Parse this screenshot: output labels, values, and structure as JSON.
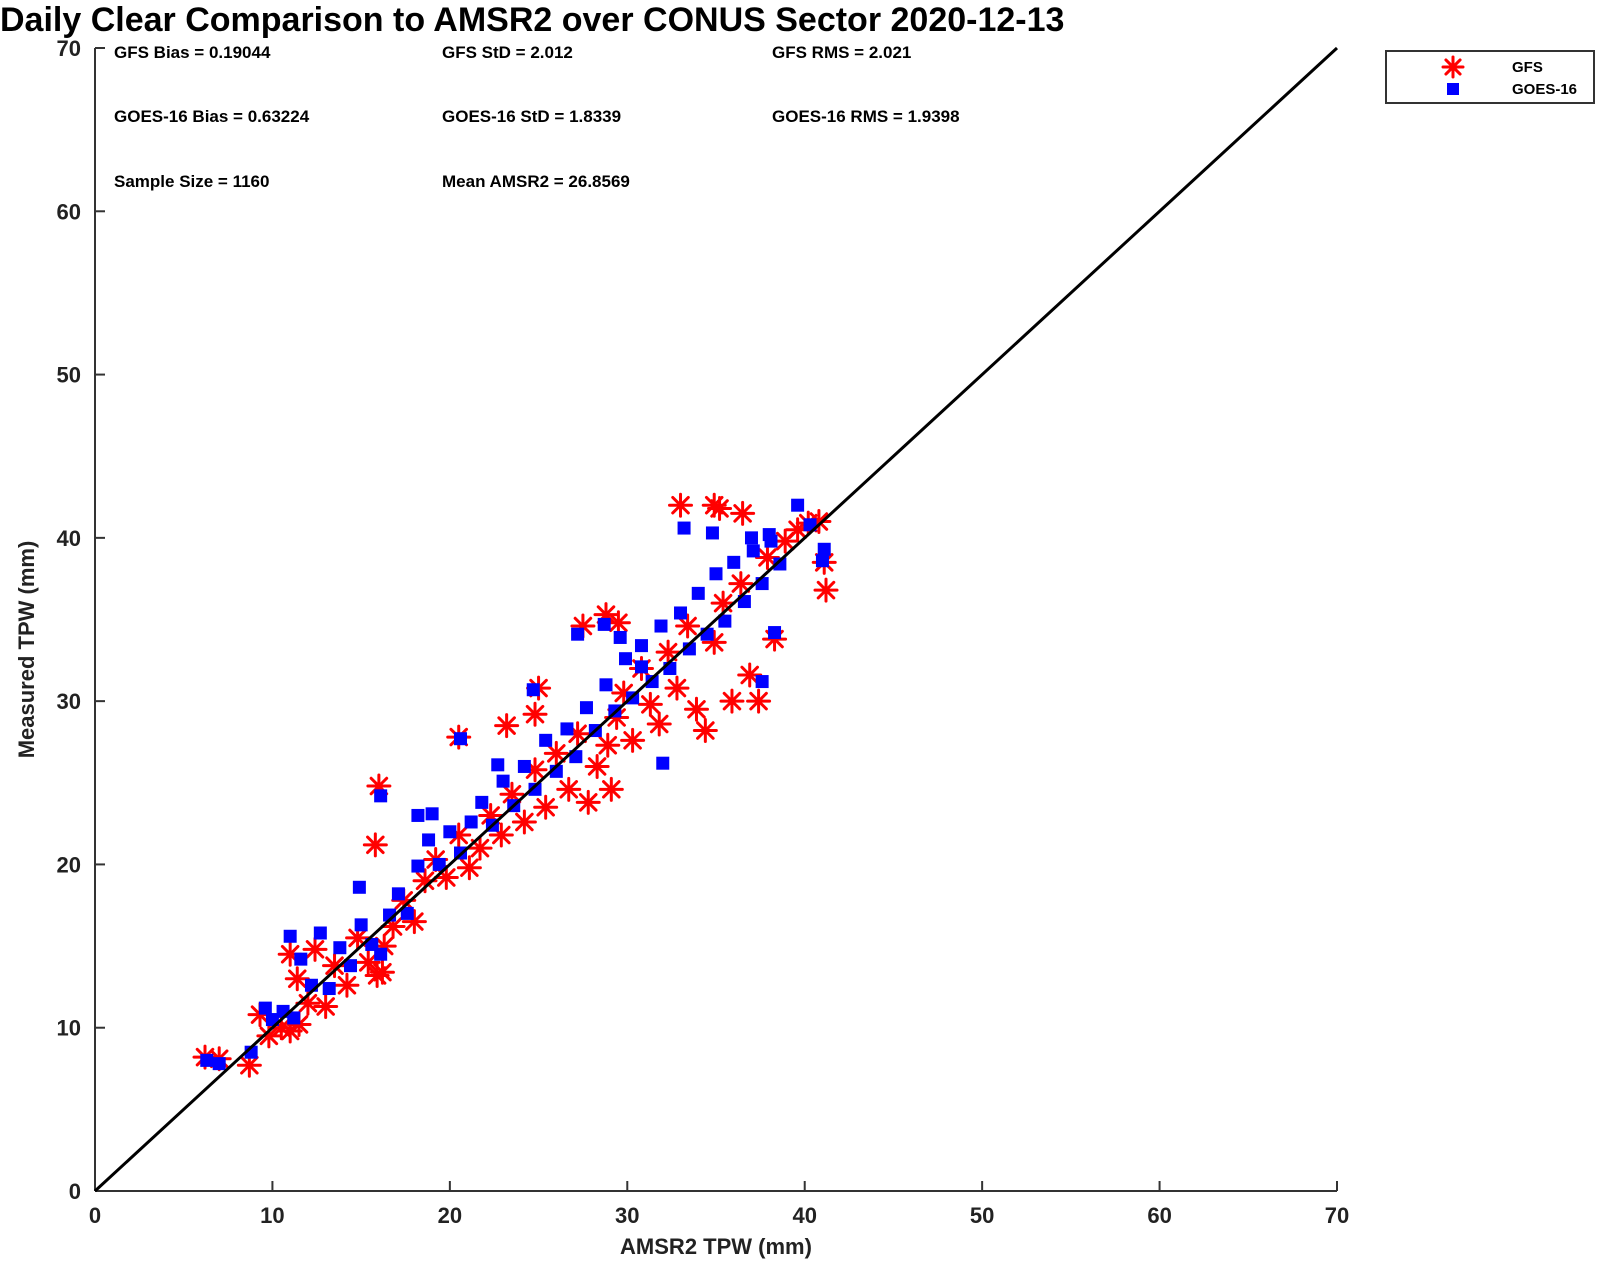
{
  "chart_data": {
    "type": "scatter",
    "title": "Daily Clear Comparison to AMSR2 over CONUS Sector 2020-12-13",
    "xlabel": "AMSR2 TPW (mm)",
    "ylabel": "Measured TPW (mm)",
    "xlim": [
      0,
      70
    ],
    "ylim": [
      0,
      70
    ],
    "xticks": [
      "0",
      "10",
      "20",
      "30",
      "40",
      "50",
      "60",
      "70"
    ],
    "yticks": [
      "0",
      "10",
      "20",
      "30",
      "40",
      "50",
      "60",
      "70"
    ],
    "grid": false,
    "legend_position": "top-right, outside plot",
    "reference_line": {
      "from": [
        0,
        0
      ],
      "to": [
        70,
        70
      ],
      "color": "#000000"
    },
    "stats": [
      "GFS Bias = 0.19044",
      "GFS StD = 2.012",
      "GFS RMS = 2.021",
      "GOES-16 Bias = 0.63224",
      "GOES-16 StD = 1.8339",
      "GOES-16 RMS = 1.9398",
      "Sample Size = 1160",
      "Mean AMSR2 = 26.8569"
    ],
    "series": [
      {
        "name": "GFS",
        "marker": "asterisk",
        "color": "#ff0000",
        "points": [
          [
            6.2,
            8.2
          ],
          [
            7.0,
            8.1
          ],
          [
            8.7,
            7.7
          ],
          [
            9.3,
            10.8
          ],
          [
            9.8,
            9.5
          ],
          [
            10.5,
            10.0
          ],
          [
            11.0,
            9.8
          ],
          [
            11.5,
            10.2
          ],
          [
            11.0,
            14.5
          ],
          [
            11.4,
            13.0
          ],
          [
            12.0,
            11.5
          ],
          [
            12.4,
            14.8
          ],
          [
            13.0,
            11.3
          ],
          [
            13.5,
            13.8
          ],
          [
            14.2,
            12.6
          ],
          [
            14.8,
            15.5
          ],
          [
            15.4,
            14.0
          ],
          [
            15.9,
            13.2
          ],
          [
            16.3,
            15.0
          ],
          [
            16.8,
            16.2
          ],
          [
            17.4,
            17.8
          ],
          [
            18.0,
            16.5
          ],
          [
            18.6,
            19.0
          ],
          [
            19.2,
            20.3
          ],
          [
            19.8,
            19.2
          ],
          [
            20.5,
            21.8
          ],
          [
            21.1,
            19.8
          ],
          [
            21.7,
            21.0
          ],
          [
            22.3,
            23.0
          ],
          [
            22.9,
            21.8
          ],
          [
            23.5,
            24.3
          ],
          [
            24.2,
            22.6
          ],
          [
            24.8,
            25.8
          ],
          [
            25.4,
            23.5
          ],
          [
            26.0,
            26.8
          ],
          [
            26.7,
            24.6
          ],
          [
            27.2,
            28.0
          ],
          [
            27.8,
            23.8
          ],
          [
            28.3,
            26.0
          ],
          [
            28.9,
            27.3
          ],
          [
            29.4,
            29.0
          ],
          [
            29.8,
            30.5
          ],
          [
            30.3,
            27.6
          ],
          [
            30.8,
            32.0
          ],
          [
            31.3,
            29.8
          ],
          [
            31.8,
            28.6
          ],
          [
            32.3,
            33.0
          ],
          [
            32.8,
            30.8
          ],
          [
            33.4,
            34.6
          ],
          [
            33.9,
            29.5
          ],
          [
            34.4,
            28.2
          ],
          [
            34.9,
            33.6
          ],
          [
            35.4,
            36.0
          ],
          [
            35.9,
            30.0
          ],
          [
            36.4,
            37.2
          ],
          [
            36.9,
            31.6
          ],
          [
            37.4,
            30.0
          ],
          [
            37.9,
            38.8
          ],
          [
            38.3,
            33.8
          ],
          [
            38.9,
            39.8
          ],
          [
            39.6,
            40.5
          ],
          [
            40.2,
            40.9
          ],
          [
            40.8,
            41.0
          ],
          [
            41.2,
            36.8
          ],
          [
            41.1,
            38.5
          ],
          [
            33.0,
            42.0
          ],
          [
            34.9,
            42.0
          ],
          [
            35.2,
            41.8
          ],
          [
            36.5,
            41.5
          ],
          [
            16.0,
            24.8
          ],
          [
            20.5,
            27.8
          ],
          [
            28.8,
            35.3
          ],
          [
            29.5,
            34.8
          ],
          [
            27.5,
            34.6
          ],
          [
            15.8,
            21.2
          ],
          [
            16.2,
            13.4
          ],
          [
            29.1,
            24.6
          ],
          [
            25.0,
            30.8
          ],
          [
            23.2,
            28.5
          ],
          [
            24.8,
            29.2
          ]
        ]
      },
      {
        "name": "GOES-16",
        "marker": "square",
        "color": "#0000ff",
        "points": [
          [
            6.3,
            8.0
          ],
          [
            7.0,
            7.8
          ],
          [
            8.8,
            8.5
          ],
          [
            9.6,
            11.2
          ],
          [
            10.0,
            10.5
          ],
          [
            10.6,
            11.0
          ],
          [
            11.2,
            10.6
          ],
          [
            11.0,
            15.6
          ],
          [
            11.6,
            14.2
          ],
          [
            12.2,
            12.6
          ],
          [
            12.7,
            15.8
          ],
          [
            13.2,
            12.4
          ],
          [
            13.8,
            14.9
          ],
          [
            14.4,
            13.8
          ],
          [
            15.0,
            16.3
          ],
          [
            15.6,
            15.1
          ],
          [
            16.1,
            14.5
          ],
          [
            16.6,
            16.9
          ],
          [
            17.1,
            18.2
          ],
          [
            17.6,
            17.0
          ],
          [
            18.2,
            19.9
          ],
          [
            18.8,
            21.5
          ],
          [
            19.4,
            20.0
          ],
          [
            20.0,
            22.0
          ],
          [
            20.6,
            20.7
          ],
          [
            21.2,
            22.6
          ],
          [
            21.8,
            23.8
          ],
          [
            22.4,
            22.4
          ],
          [
            23.0,
            25.1
          ],
          [
            23.6,
            23.6
          ],
          [
            24.2,
            26.0
          ],
          [
            24.8,
            24.6
          ],
          [
            25.4,
            27.6
          ],
          [
            26.0,
            25.7
          ],
          [
            26.6,
            28.3
          ],
          [
            27.1,
            26.6
          ],
          [
            27.7,
            29.6
          ],
          [
            28.2,
            28.2
          ],
          [
            28.8,
            31.0
          ],
          [
            29.3,
            29.4
          ],
          [
            29.9,
            32.6
          ],
          [
            30.3,
            30.2
          ],
          [
            30.8,
            33.4
          ],
          [
            31.4,
            31.2
          ],
          [
            31.9,
            34.6
          ],
          [
            32.4,
            32.0
          ],
          [
            33.0,
            35.4
          ],
          [
            33.5,
            33.2
          ],
          [
            34.0,
            36.6
          ],
          [
            34.5,
            34.1
          ],
          [
            35.0,
            37.8
          ],
          [
            35.5,
            34.9
          ],
          [
            36.0,
            38.5
          ],
          [
            36.6,
            36.1
          ],
          [
            37.1,
            39.2
          ],
          [
            37.6,
            37.2
          ],
          [
            38.1,
            39.8
          ],
          [
            38.6,
            38.4
          ],
          [
            39.6,
            42.0
          ],
          [
            40.3,
            40.8
          ],
          [
            41.1,
            39.3
          ],
          [
            41.0,
            38.6
          ],
          [
            33.2,
            40.6
          ],
          [
            34.8,
            40.3
          ],
          [
            20.6,
            27.7
          ],
          [
            16.1,
            24.2
          ],
          [
            18.2,
            23.0
          ],
          [
            19.0,
            23.1
          ],
          [
            27.2,
            34.1
          ],
          [
            28.7,
            34.7
          ],
          [
            29.6,
            33.9
          ],
          [
            30.8,
            32.1
          ],
          [
            37.0,
            40.0
          ],
          [
            38.0,
            40.2
          ],
          [
            24.7,
            30.7
          ],
          [
            22.7,
            26.1
          ],
          [
            14.9,
            18.6
          ],
          [
            37.6,
            31.2
          ],
          [
            32.0,
            26.2
          ],
          [
            38.3,
            34.2
          ]
        ]
      }
    ]
  }
}
